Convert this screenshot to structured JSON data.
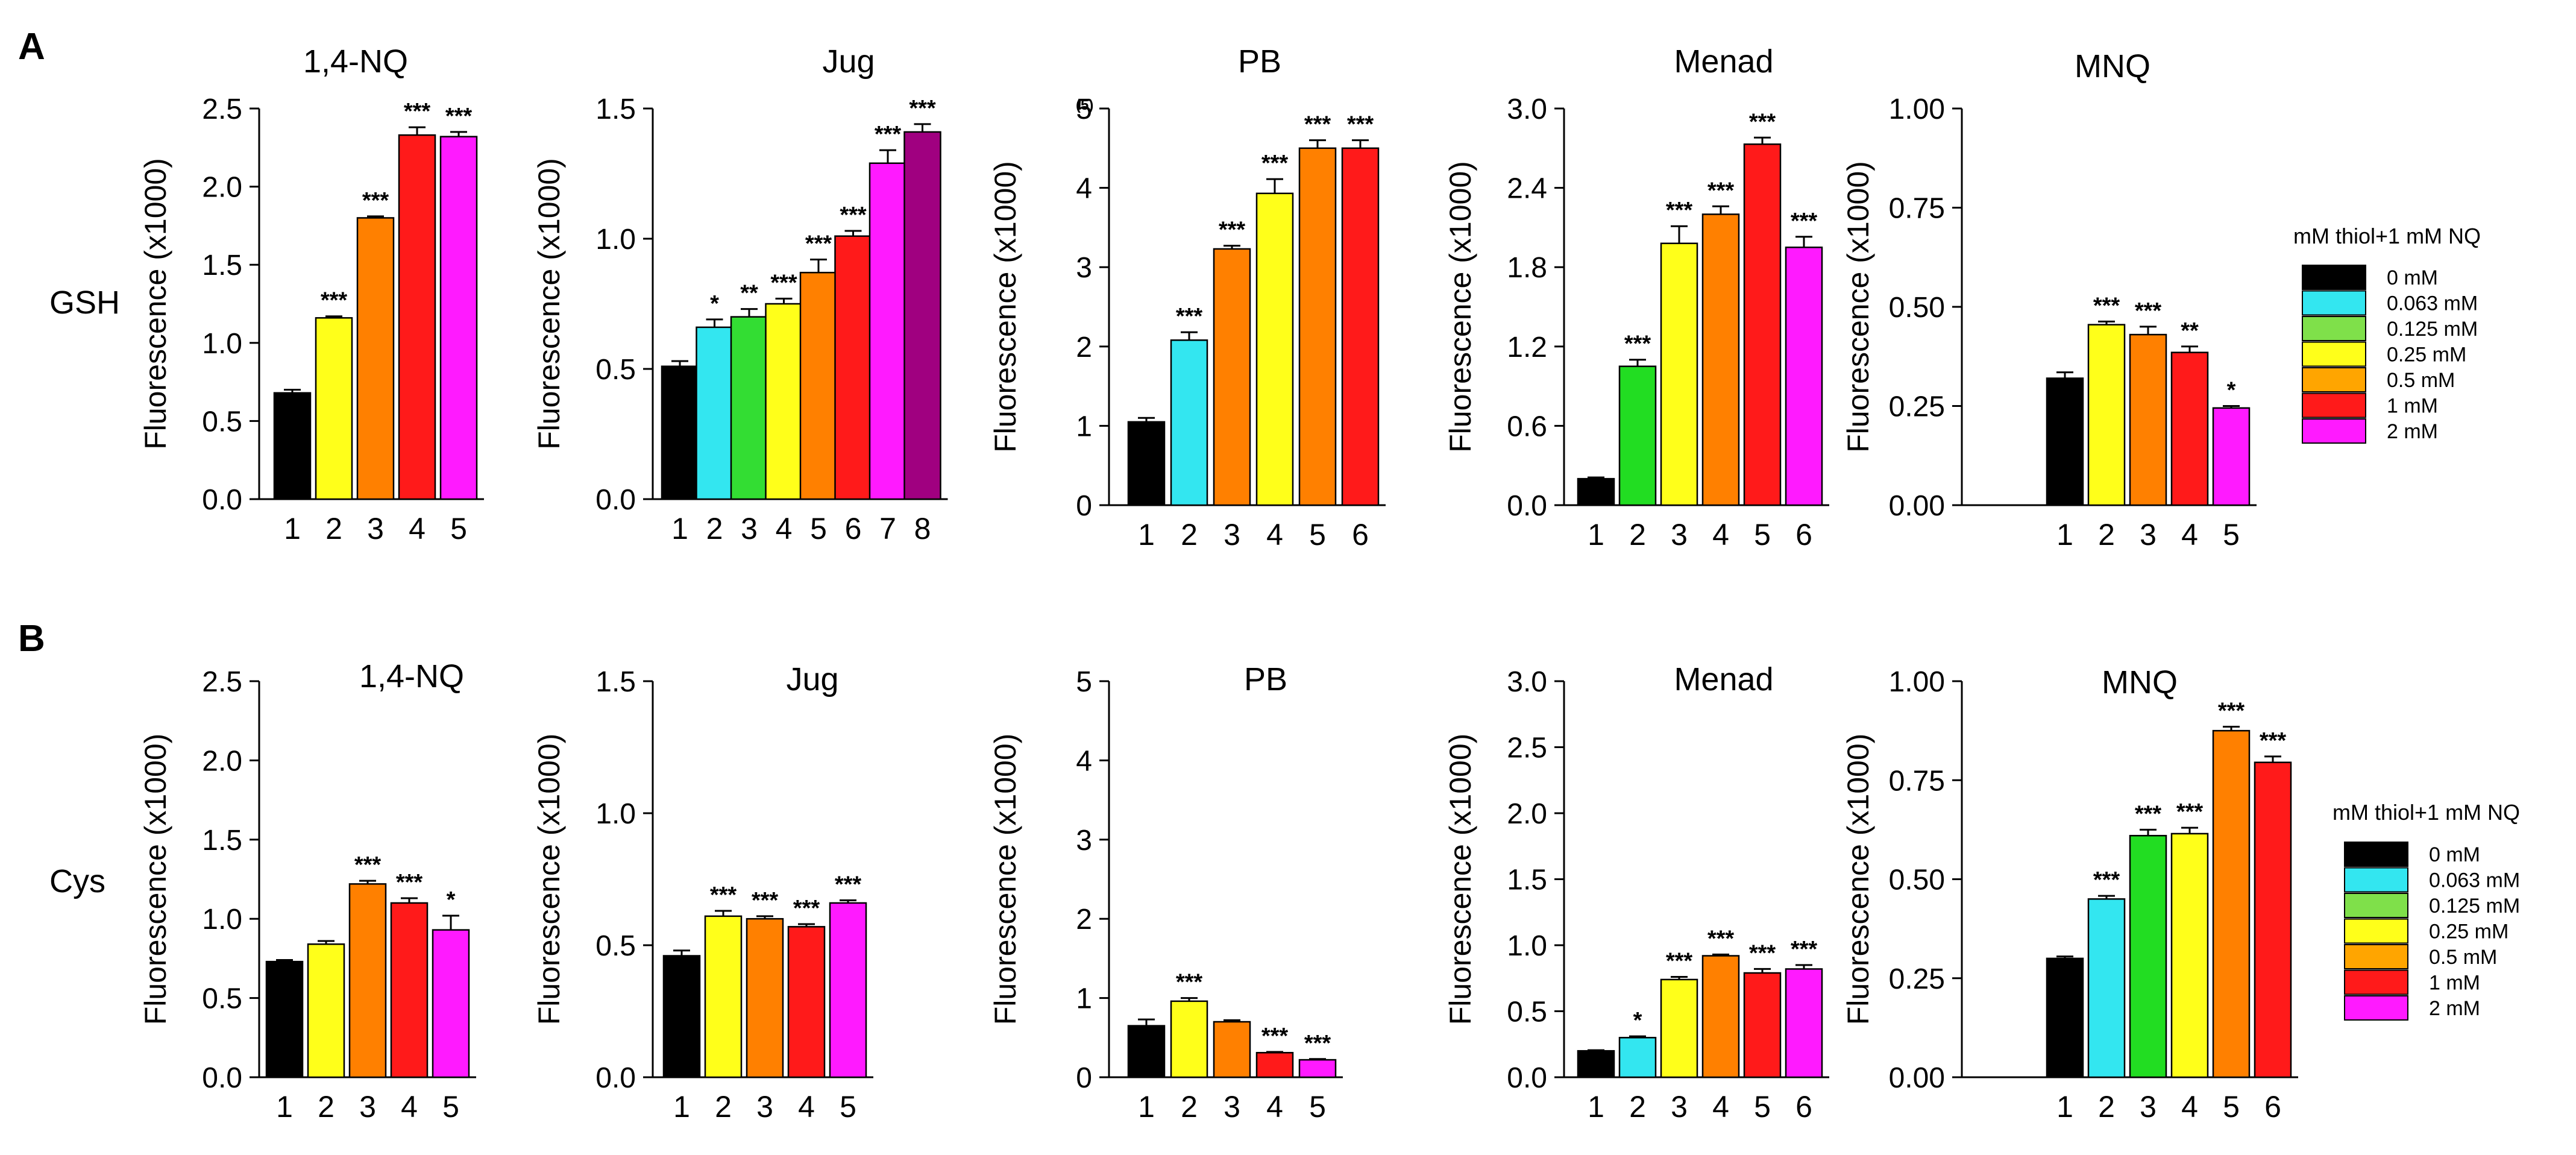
{
  "panel_labels": {
    "A": "A",
    "B": "B"
  },
  "row_labels": {
    "A": "GSH",
    "B": "Cys"
  },
  "legend": {
    "title": "mM thiol+1 mM NQ",
    "items": [
      {
        "label": "0 mM",
        "color": "#000000"
      },
      {
        "label": "0.063 mM",
        "color": "#33e6f0"
      },
      {
        "label": "0.125 mM",
        "color": "#7fe04a"
      },
      {
        "label": "0.25 mM",
        "color": "#ffff1a"
      },
      {
        "label": "0.5 mM",
        "color": "#ffa500"
      },
      {
        "label": "1 mM",
        "color": "#ff1a1a"
      },
      {
        "label": "2 mM",
        "color": "#ff1aff"
      }
    ]
  },
  "chart_data": [
    {
      "id": "A1",
      "row": "A",
      "type": "bar",
      "title": "1,4-NQ",
      "ylabel": "Fluorescence (x1000)",
      "ylim": [
        0,
        2.5
      ],
      "yticks": [
        "0.0",
        "0.5",
        "1.0",
        "1.5",
        "2.0",
        "2.5"
      ],
      "categories": [
        "1",
        "2",
        "3",
        "4",
        "5"
      ],
      "values": [
        0.68,
        1.16,
        1.8,
        2.33,
        2.32
      ],
      "errors": [
        0.02,
        0.01,
        0.01,
        0.05,
        0.03
      ],
      "colors": [
        "#000000",
        "#ffff1a",
        "#ff8000",
        "#ff1a1a",
        "#ff1aff"
      ],
      "sig": [
        "",
        "***",
        "***",
        "***",
        "***"
      ]
    },
    {
      "id": "A2",
      "row": "A",
      "type": "bar",
      "title": "Jug",
      "ylabel": "Fluorescence (x1000)",
      "ylim": [
        0,
        1.5
      ],
      "yticks": [
        "0.0",
        "0.5",
        "1.0",
        "1.5"
      ],
      "categories": [
        "1",
        "2",
        "3",
        "4",
        "5",
        "6",
        "7",
        "8"
      ],
      "values": [
        0.51,
        0.66,
        0.7,
        0.75,
        0.87,
        1.01,
        1.29,
        1.41
      ],
      "errors": [
        0.02,
        0.03,
        0.03,
        0.02,
        0.05,
        0.02,
        0.05,
        0.03
      ],
      "colors": [
        "#000000",
        "#33e6f0",
        "#33dd33",
        "#ffff1a",
        "#ff8000",
        "#ff1a1a",
        "#ff1aff",
        "#a00080"
      ],
      "sig": [
        "",
        "*",
        "**",
        "***",
        "***",
        "***",
        "***",
        "***"
      ]
    },
    {
      "id": "A3",
      "row": "A",
      "type": "bar",
      "title": "PB",
      "ylabel": "Fluorescence (x1000)",
      "note": "(5)",
      "ylim": [
        0,
        5
      ],
      "yticks": [
        "0",
        "1",
        "2",
        "3",
        "4",
        "5"
      ],
      "categories": [
        "1",
        "2",
        "3",
        "4",
        "5",
        "6"
      ],
      "values": [
        1.05,
        2.08,
        3.23,
        3.93,
        4.5,
        4.5
      ],
      "errors": [
        0.05,
        0.1,
        0.04,
        0.18,
        0.1,
        0.1
      ],
      "colors": [
        "#000000",
        "#33e6f0",
        "#ff8000",
        "#ffff1a",
        "#ff8000",
        "#ff1a1a"
      ],
      "sig": [
        "",
        "***",
        "***",
        "***",
        "***",
        "***"
      ]
    },
    {
      "id": "A4",
      "row": "A",
      "type": "bar",
      "title": "Menad",
      "ylabel": "Fluorescence (x1000)",
      "ylim": [
        0,
        3.0
      ],
      "yticks": [
        "0.0",
        "0.6",
        "1.2",
        "1.8",
        "2.4",
        "3.0"
      ],
      "categories": [
        "1",
        "2",
        "3",
        "4",
        "5",
        "6"
      ],
      "values": [
        0.2,
        1.05,
        1.98,
        2.2,
        2.73,
        1.95
      ],
      "errors": [
        0.01,
        0.05,
        0.13,
        0.06,
        0.05,
        0.08
      ],
      "colors": [
        "#000000",
        "#22dd22",
        "#ffff1a",
        "#ff8000",
        "#ff1a1a",
        "#ff1aff"
      ],
      "sig": [
        "",
        "***",
        "***",
        "***",
        "***",
        "***"
      ]
    },
    {
      "id": "A5",
      "row": "A",
      "type": "bar",
      "title": "MNQ",
      "ylabel": "Fluorescence (x1000)",
      "ylim": [
        0,
        1.0
      ],
      "yticks": [
        "0.00",
        "0.25",
        "0.50",
        "0.75",
        "1.00"
      ],
      "categories": [
        "1",
        "2",
        "3",
        "4",
        "5"
      ],
      "values": [
        0.32,
        0.455,
        0.43,
        0.385,
        0.245
      ],
      "errors": [
        0.015,
        0.008,
        0.02,
        0.015,
        0.005
      ],
      "colors": [
        "#000000",
        "#ffff1a",
        "#ff8000",
        "#ff1a1a",
        "#ff1aff"
      ],
      "sig": [
        "",
        "***",
        "***",
        "**",
        "*"
      ]
    },
    {
      "id": "B1",
      "row": "B",
      "type": "bar",
      "title": "1,4-NQ",
      "ylabel": "Fluorescence (x1000)",
      "ylim": [
        0,
        2.5
      ],
      "yticks": [
        "0.0",
        "0.5",
        "1.0",
        "1.5",
        "2.0",
        "2.5"
      ],
      "categories": [
        "1",
        "2",
        "3",
        "4",
        "5"
      ],
      "values": [
        0.73,
        0.84,
        1.22,
        1.1,
        0.93
      ],
      "errors": [
        0.01,
        0.02,
        0.02,
        0.03,
        0.09
      ],
      "colors": [
        "#000000",
        "#ffff1a",
        "#ff8000",
        "#ff1a1a",
        "#ff1aff"
      ],
      "sig": [
        "",
        "",
        "***",
        "***",
        "*"
      ]
    },
    {
      "id": "B2",
      "row": "B",
      "type": "bar",
      "title": "Jug",
      "ylabel": "Fluorescence (x1000)",
      "ylim": [
        0,
        1.5
      ],
      "yticks": [
        "0.0",
        "0.5",
        "1.0",
        "1.5"
      ],
      "categories": [
        "1",
        "2",
        "3",
        "4",
        "5"
      ],
      "values": [
        0.46,
        0.61,
        0.6,
        0.57,
        0.66
      ],
      "errors": [
        0.02,
        0.02,
        0.01,
        0.01,
        0.01
      ],
      "colors": [
        "#000000",
        "#ffff1a",
        "#ff8000",
        "#ff1a1a",
        "#ff1aff"
      ],
      "sig": [
        "",
        "***",
        "***",
        "***",
        "***"
      ]
    },
    {
      "id": "B3",
      "row": "B",
      "type": "bar",
      "title": "PB",
      "ylabel": "Fluorescence (x1000)",
      "ylim": [
        0,
        5
      ],
      "yticks": [
        "0",
        "1",
        "2",
        "3",
        "4",
        "5"
      ],
      "categories": [
        "1",
        "2",
        "3",
        "4",
        "5"
      ],
      "values": [
        0.65,
        0.96,
        0.7,
        0.31,
        0.22
      ],
      "errors": [
        0.08,
        0.04,
        0.02,
        0.01,
        0.01
      ],
      "colors": [
        "#000000",
        "#ffff1a",
        "#ff8000",
        "#ff1a1a",
        "#ff1aff"
      ],
      "sig": [
        "",
        "***",
        "",
        "***",
        "***"
      ]
    },
    {
      "id": "B4",
      "row": "B",
      "type": "bar",
      "title": "Menad",
      "ylabel": "Fluorescence (x1000)",
      "ylim": [
        0,
        3.0
      ],
      "yticks": [
        "0.0",
        "0.5",
        "1.0",
        "1.5",
        "2.0",
        "2.5",
        "3.0"
      ],
      "categories": [
        "1",
        "2",
        "3",
        "4",
        "5",
        "6"
      ],
      "values": [
        0.2,
        0.3,
        0.74,
        0.92,
        0.79,
        0.82
      ],
      "errors": [
        0.005,
        0.01,
        0.02,
        0.01,
        0.03,
        0.03
      ],
      "colors": [
        "#000000",
        "#33e6f0",
        "#ffff1a",
        "#ff8000",
        "#ff1a1a",
        "#ff1aff"
      ],
      "sig": [
        "",
        "*",
        "***",
        "***",
        "***",
        "***"
      ]
    },
    {
      "id": "B5",
      "row": "B",
      "type": "bar",
      "title": "MNQ",
      "ylabel": "Fluorescence (x1000)",
      "ylim": [
        0,
        1.0
      ],
      "yticks": [
        "0.00",
        "0.25",
        "0.50",
        "0.75",
        "1.00"
      ],
      "categories": [
        "1",
        "2",
        "3",
        "4",
        "5",
        "6"
      ],
      "values": [
        0.3,
        0.45,
        0.61,
        0.615,
        0.875,
        0.795
      ],
      "errors": [
        0.005,
        0.008,
        0.015,
        0.015,
        0.01,
        0.015
      ],
      "colors": [
        "#000000",
        "#33e6f0",
        "#22dd22",
        "#ffff1a",
        "#ff8000",
        "#ff1a1a"
      ],
      "sig": [
        "",
        "***",
        "***",
        "***",
        "***",
        "***"
      ]
    }
  ]
}
